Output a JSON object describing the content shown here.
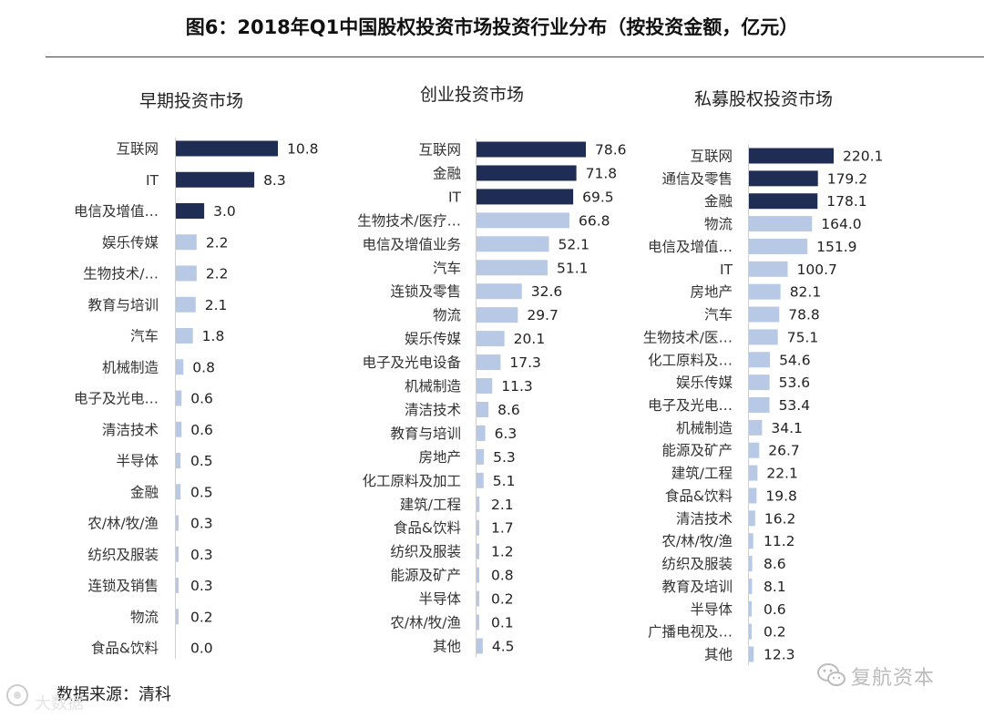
{
  "title": "图6：2018年Q1中国股权投资市场投资行业分布（按投资金额，亿元）",
  "source": "数据来源：清科",
  "watermark": "复航资本",
  "corner_watermark": "大数据",
  "colors": {
    "dark": "#1f2c54",
    "light": "#b8c9e6"
  },
  "chart_data": [
    {
      "type": "bar",
      "orientation": "horizontal",
      "title": "早期投资市场",
      "xlim": [
        0,
        10.8
      ],
      "categories": [
        "互联网",
        "IT",
        "电信及增值…",
        "娱乐传媒",
        "生物技术/…",
        "教育与培训",
        "汽车",
        "机械制造",
        "电子及光电…",
        "清洁技术",
        "半导体",
        "金融",
        "农/林/牧/渔",
        "纺织及服装",
        "连锁及销售",
        "物流",
        "食品&饮料"
      ],
      "values": [
        10.8,
        8.3,
        3.0,
        2.2,
        2.2,
        2.1,
        1.8,
        0.8,
        0.6,
        0.6,
        0.5,
        0.5,
        0.3,
        0.3,
        0.3,
        0.2,
        0.0
      ],
      "value_labels": [
        "10.8",
        "8.3",
        "3.0",
        "2.2",
        "2.2",
        "2.1",
        "1.8",
        "0.8",
        "0.6",
        "0.6",
        "0.5",
        "0.5",
        "0.3",
        "0.3",
        "0.3",
        "0.2",
        "0.0"
      ],
      "highlight_top": 3
    },
    {
      "type": "bar",
      "orientation": "horizontal",
      "title": "创业投资市场",
      "xlim": [
        0,
        78.6
      ],
      "categories": [
        "互联网",
        "金融",
        "IT",
        "生物技术/医疗…",
        "电信及增值业务",
        "汽车",
        "连锁及零售",
        "物流",
        "娱乐传媒",
        "电子及光电设备",
        "机械制造",
        "清洁技术",
        "教育与培训",
        "房地产",
        "化工原料及加工",
        "建筑/工程",
        "食品&饮料",
        "纺织及服装",
        "能源及矿产",
        "半导体",
        "农/林/牧/渔",
        "其他"
      ],
      "values": [
        78.6,
        71.8,
        69.5,
        66.8,
        52.1,
        51.1,
        32.6,
        29.7,
        20.1,
        17.3,
        11.3,
        8.6,
        6.3,
        5.3,
        5.1,
        2.1,
        1.7,
        1.2,
        0.8,
        0.2,
        0.1,
        4.5
      ],
      "value_labels": [
        "78.6",
        "71.8",
        "69.5",
        "66.8",
        "52.1",
        "51.1",
        "32.6",
        "29.7",
        "20.1",
        "17.3",
        "11.3",
        "8.6",
        "6.3",
        "5.3",
        "5.1",
        "2.1",
        "1.7",
        "1.2",
        "0.8",
        "0.2",
        "0.1",
        "4.5"
      ],
      "highlight_top": 3
    },
    {
      "type": "bar",
      "orientation": "horizontal",
      "title": "私募股权投资市场",
      "xlim": [
        0,
        220.1
      ],
      "categories": [
        "互联网",
        "通信及零售",
        "金融",
        "物流",
        "电信及增值…",
        "IT",
        "房地产",
        "汽车",
        "生物技术/医…",
        "化工原料及…",
        "娱乐传媒",
        "电子及光电…",
        "机械制造",
        "能源及矿产",
        "建筑/工程",
        "食品&饮料",
        "清洁技术",
        "农/林/牧/渔",
        "纺织及服装",
        "教育及培训",
        "半导体",
        "广播电视及…",
        "其他"
      ],
      "values": [
        220.1,
        179.2,
        178.1,
        164.0,
        151.9,
        100.7,
        82.1,
        78.8,
        75.1,
        54.6,
        53.6,
        53.4,
        34.1,
        26.7,
        22.1,
        19.8,
        16.2,
        11.2,
        8.6,
        8.1,
        0.6,
        0.2,
        12.3
      ],
      "value_labels": [
        "220.1",
        "179.2",
        "178.1",
        "164.0",
        "151.9",
        "100.7",
        "82.1",
        "78.8",
        "75.1",
        "54.6",
        "53.6",
        "53.4",
        "34.1",
        "26.7",
        "22.1",
        "19.8",
        "16.2",
        "11.2",
        "8.6",
        "8.1",
        "0.6",
        "0.2",
        "12.3"
      ],
      "highlight_top": 3
    }
  ]
}
